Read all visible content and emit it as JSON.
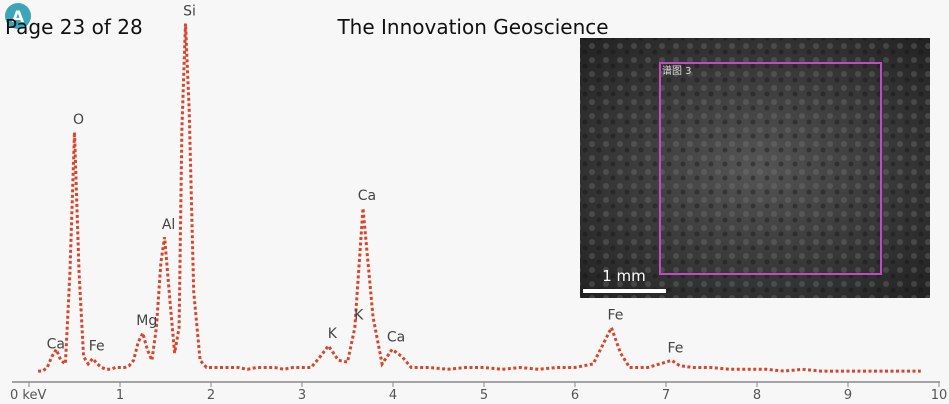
{
  "header": {
    "panel": "A",
    "page": "Page 23 of 28",
    "journal": "The Innovation Geoscience"
  },
  "image": {
    "scale_label": "1 mm",
    "region_label": "谱图 3"
  },
  "chart_data": {
    "type": "line",
    "color": "#d9452b",
    "x": [
      0.1,
      0.15,
      0.2,
      0.25,
      0.3,
      0.35,
      0.4,
      0.45,
      0.5,
      0.55,
      0.6,
      0.65,
      0.7,
      0.75,
      0.8,
      0.85,
      0.9,
      0.95,
      1.0,
      1.05,
      1.1,
      1.15,
      1.2,
      1.25,
      1.3,
      1.35,
      1.4,
      1.45,
      1.49,
      1.55,
      1.6,
      1.65,
      1.68,
      1.72,
      1.76,
      1.81,
      1.88,
      1.95,
      2.0,
      2.1,
      2.2,
      2.3,
      2.4,
      2.5,
      2.6,
      2.7,
      2.8,
      2.9,
      3.0,
      3.1,
      3.2,
      3.29,
      3.4,
      3.5,
      3.58,
      3.67,
      3.78,
      3.88,
      3.99,
      4.1,
      4.2,
      4.4,
      4.6,
      4.8,
      5.0,
      5.2,
      5.4,
      5.6,
      5.8,
      6.0,
      6.2,
      6.3,
      6.4,
      6.5,
      6.6,
      6.8,
      7.0,
      7.06,
      7.15,
      7.3,
      7.5,
      7.7,
      7.9,
      8.1,
      8.3,
      8.5,
      8.7,
      8.9,
      9.1,
      9.3,
      9.5,
      9.7,
      9.8
    ],
    "values": [
      3,
      3,
      4,
      7,
      9,
      6,
      5,
      30,
      69,
      30,
      7,
      5,
      6.5,
      5,
      4,
      3.5,
      3.5,
      4,
      4,
      4,
      4.5,
      6,
      11,
      13.5,
      9,
      6,
      15,
      33,
      40,
      22,
      8,
      15,
      70,
      99,
      75,
      25,
      6,
      4,
      4,
      4,
      4,
      4,
      3.5,
      4,
      4,
      4,
      3.5,
      4,
      4,
      4,
      7,
      10,
      6,
      5.5,
      15,
      48,
      18,
      5,
      9,
      7,
      4,
      4,
      3.5,
      4,
      4,
      3.5,
      4,
      3.5,
      4,
      4,
      5,
      10,
      15,
      8,
      4,
      4,
      5.5,
      6,
      4.5,
      4,
      4,
      3.5,
      3.5,
      3.5,
      3,
      3.5,
      3,
      3,
      3,
      3,
      3,
      3,
      3
    ],
    "ylim": [
      0,
      100
    ],
    "xlim": [
      0,
      10
    ],
    "xticks": [
      {
        "value": 0,
        "label": "0 keV"
      },
      1,
      2,
      3,
      4,
      5,
      6,
      7,
      8,
      9,
      10
    ],
    "annotations": [
      {
        "text": "Ca",
        "x": 0.25
      },
      {
        "text": "O",
        "x": 0.5
      },
      {
        "text": "Fe",
        "x": 0.7
      },
      {
        "text": "Mg",
        "x": 1.25
      },
      {
        "text": "Al",
        "x": 1.49
      },
      {
        "text": "Si",
        "x": 1.72
      },
      {
        "text": "K",
        "x": 3.29
      },
      {
        "text": "K",
        "x": 3.58
      },
      {
        "text": "Ca",
        "x": 3.67
      },
      {
        "text": "Ca",
        "x": 3.99
      },
      {
        "text": "Fe",
        "x": 6.4
      },
      {
        "text": "Fe",
        "x": 7.06
      }
    ]
  }
}
